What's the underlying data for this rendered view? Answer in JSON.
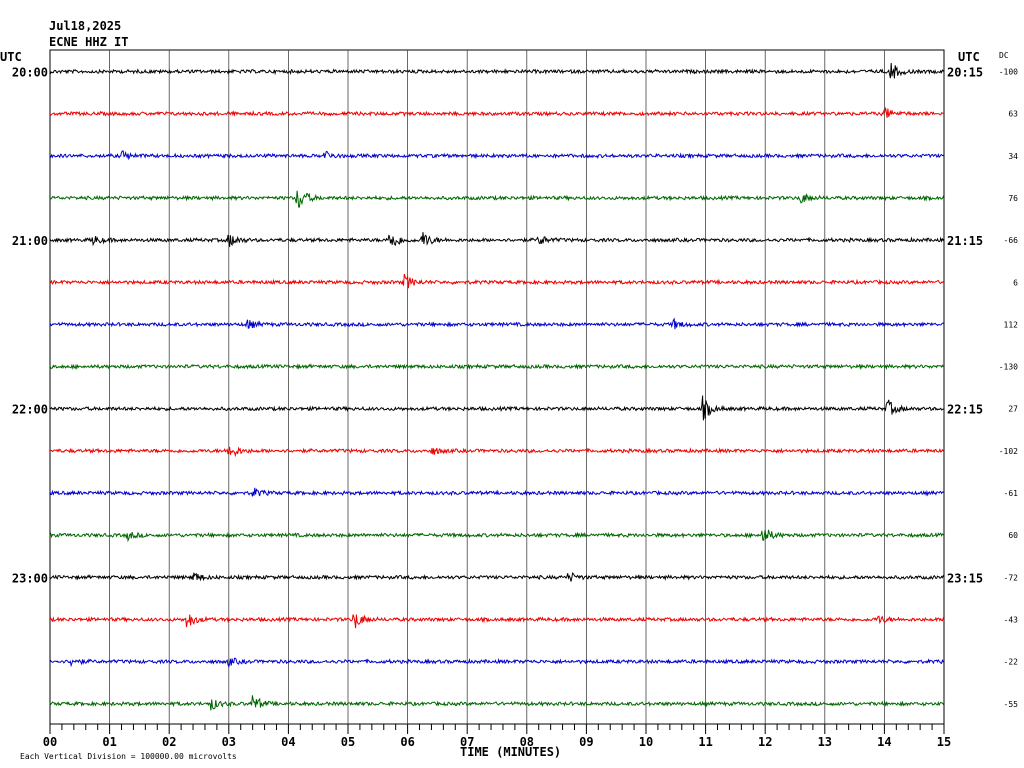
{
  "header": {
    "date": "Jul18,2025",
    "station": "ECNE HHZ IT",
    "utc_left": "UTC",
    "utc_right": "UTC",
    "dc_label": "DC"
  },
  "footer": {
    "xlabel": "TIME (MINUTES)",
    "scale_note": "Each Vertical Division = 100000.00 microvolts"
  },
  "chart_data": {
    "type": "line",
    "xlabel": "TIME (MINUTES)",
    "xlim": [
      0,
      15
    ],
    "x_ticks": [
      "00",
      "01",
      "02",
      "03",
      "04",
      "05",
      "06",
      "07",
      "08",
      "09",
      "10",
      "11",
      "12",
      "13",
      "14",
      "15"
    ],
    "trace_colors": [
      "#000000",
      "#ee0000",
      "#0000cc",
      "#006600"
    ],
    "traces": [
      {
        "left_time": "20:00",
        "right_time": "20:15",
        "dc": "-100",
        "events": [
          {
            "min": 14.1,
            "amp": 10
          }
        ]
      },
      {
        "left_time": "",
        "right_time": "",
        "dc": "63",
        "events": [
          {
            "min": 14.0,
            "amp": 6
          }
        ]
      },
      {
        "left_time": "",
        "right_time": "",
        "dc": "34",
        "events": [
          {
            "min": 1.2,
            "amp": 5
          },
          {
            "min": 4.6,
            "amp": 5
          }
        ]
      },
      {
        "left_time": "",
        "right_time": "",
        "dc": "76",
        "events": [
          {
            "min": 4.15,
            "amp": 14
          },
          {
            "min": 12.6,
            "amp": 5
          }
        ]
      },
      {
        "left_time": "21:00",
        "right_time": "21:15",
        "dc": "-66",
        "events": [
          {
            "min": 0.7,
            "amp": 5
          },
          {
            "min": 3.0,
            "amp": 7
          },
          {
            "min": 5.7,
            "amp": 12
          },
          {
            "min": 6.25,
            "amp": 9
          },
          {
            "min": 8.2,
            "amp": 5
          }
        ]
      },
      {
        "left_time": "",
        "right_time": "",
        "dc": "6",
        "events": [
          {
            "min": 5.95,
            "amp": 8
          }
        ]
      },
      {
        "left_time": "",
        "right_time": "",
        "dc": "112",
        "events": [
          {
            "min": 3.3,
            "amp": 5
          },
          {
            "min": 10.45,
            "amp": 5
          }
        ]
      },
      {
        "left_time": "",
        "right_time": "",
        "dc": "-130",
        "events": []
      },
      {
        "left_time": "22:00",
        "right_time": "22:15",
        "dc": "27",
        "events": [
          {
            "min": 10.95,
            "amp": 12
          },
          {
            "min": 14.05,
            "amp": 9
          }
        ]
      },
      {
        "left_time": "",
        "right_time": "",
        "dc": "-102",
        "events": [
          {
            "min": 3.0,
            "amp": 9
          },
          {
            "min": 6.4,
            "amp": 4
          }
        ]
      },
      {
        "left_time": "",
        "right_time": "",
        "dc": "-61",
        "events": [
          {
            "min": 3.4,
            "amp": 5
          }
        ]
      },
      {
        "left_time": "",
        "right_time": "",
        "dc": "60",
        "events": [
          {
            "min": 11.95,
            "amp": 10
          },
          {
            "min": 1.3,
            "amp": 4
          }
        ]
      },
      {
        "left_time": "23:00",
        "right_time": "23:15",
        "dc": "-72",
        "events": [
          {
            "min": 2.4,
            "amp": 5
          },
          {
            "min": 8.7,
            "amp": 5
          }
        ]
      },
      {
        "left_time": "",
        "right_time": "",
        "dc": "-43",
        "events": [
          {
            "min": 2.3,
            "amp": 9
          },
          {
            "min": 5.1,
            "amp": 10
          },
          {
            "min": 13.9,
            "amp": 4
          }
        ]
      },
      {
        "left_time": "",
        "right_time": "",
        "dc": "-22",
        "events": [
          {
            "min": 0.35,
            "amp": 4
          },
          {
            "min": 3.0,
            "amp": 4
          }
        ]
      },
      {
        "left_time": "",
        "right_time": "",
        "dc": "-55",
        "events": [
          {
            "min": 2.7,
            "amp": 6
          },
          {
            "min": 3.4,
            "amp": 9
          }
        ]
      }
    ]
  }
}
